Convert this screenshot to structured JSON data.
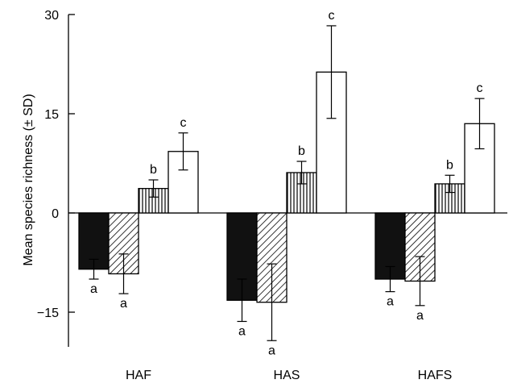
{
  "chart_data": {
    "type": "bar",
    "title": "",
    "xlabel": "",
    "ylabel": "Mean species richness (± SD)",
    "ylim": [
      -20,
      30
    ],
    "yticks": [
      {
        "value": 30,
        "label": "30"
      },
      {
        "value": 15,
        "label": "15"
      },
      {
        "value": 0,
        "label": "0"
      },
      {
        "value": -15,
        "label": "−15"
      }
    ],
    "grid": false,
    "legend": "none",
    "categories": [
      "HAF",
      "HAS",
      "HAFS"
    ],
    "series": [
      {
        "pattern": "solid-black",
        "values": [
          -8.5,
          -13.2,
          -10.0
        ],
        "sd": [
          1.5,
          3.2,
          1.9
        ],
        "letters": [
          "a",
          "a",
          "a"
        ]
      },
      {
        "pattern": "diagonal-hatch",
        "values": [
          -9.2,
          -13.5,
          -10.3
        ],
        "sd": [
          3.0,
          5.8,
          3.7
        ],
        "letters": [
          "a",
          "a",
          "a"
        ]
      },
      {
        "pattern": "vertical-lines",
        "values": [
          3.7,
          6.1,
          4.4
        ],
        "sd": [
          1.3,
          1.7,
          1.3
        ],
        "letters": [
          "b",
          "b",
          "b"
        ]
      },
      {
        "pattern": "white",
        "values": [
          9.3,
          21.3,
          13.5
        ],
        "sd": [
          2.8,
          7.0,
          3.8
        ],
        "letters": [
          "c",
          "c",
          "c"
        ]
      }
    ]
  }
}
